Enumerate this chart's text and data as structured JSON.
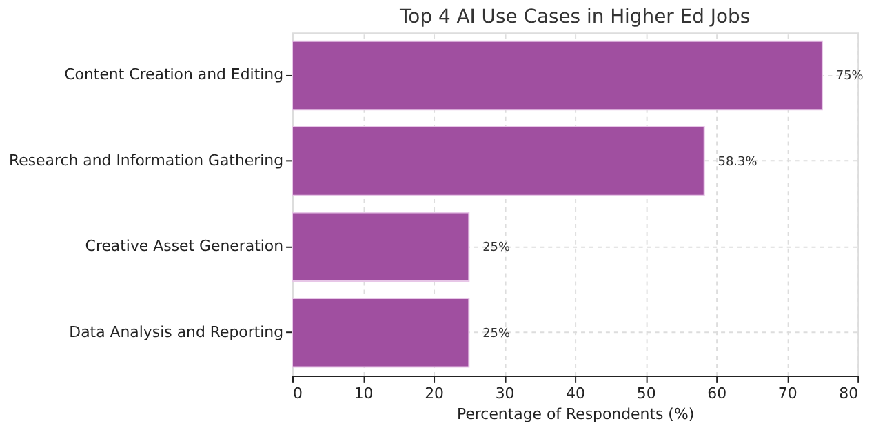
{
  "chart_data": {
    "type": "bar",
    "orientation": "horizontal",
    "title": "Top 4 AI Use Cases in Higher Ed Jobs",
    "xlabel": "Percentage of Respondents (%)",
    "categories": [
      "Content Creation and Editing",
      "Research and Information Gathering",
      "Creative Asset Generation",
      "Data Analysis and Reporting"
    ],
    "values": [
      75,
      58.3,
      25,
      25
    ],
    "value_labels": [
      "75%",
      "58.3%",
      "25%",
      "25%"
    ],
    "color": "#a04fa0",
    "xlim": [
      0,
      80
    ],
    "xticks": [
      0,
      10,
      20,
      30,
      40,
      50,
      60,
      70,
      80
    ],
    "grid": true
  }
}
